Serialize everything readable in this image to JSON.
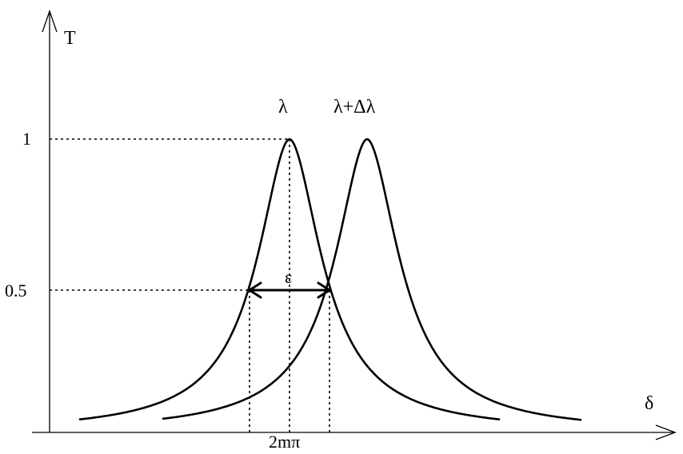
{
  "labels": {
    "y_axis": "T",
    "x_axis": "δ",
    "peak_lambda": "λ",
    "peak_shifted": "λ+Δλ",
    "tick_one": "1",
    "tick_half": "0.5",
    "tick_center": "2mπ",
    "width": "ε"
  },
  "chart_data": {
    "type": "line",
    "xlabel": "δ",
    "ylabel": "T",
    "ylim": [
      0,
      1
    ],
    "yticks": [
      "1",
      "0.5"
    ],
    "xticks": [
      "2mπ"
    ],
    "series": [
      {
        "name": "λ",
        "peak_y": 1,
        "half_max_y": 0.5
      },
      {
        "name": "λ+Δλ",
        "peak_y": 1,
        "half_max_y": 0.5
      }
    ],
    "annotations": [
      "ε"
    ]
  }
}
